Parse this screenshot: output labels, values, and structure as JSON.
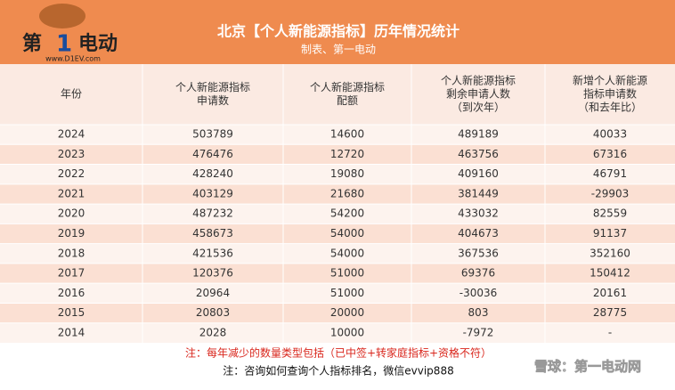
{
  "header": {
    "title": "北京【个人新能源指标】历年情况统计",
    "subtitle": "制表、第一电动",
    "logo": {
      "text": "第",
      "number": "1",
      "brand": "电动",
      "url": "www.D1EV.com"
    }
  },
  "table": {
    "columns": [
      [
        "年份"
      ],
      [
        "个人新能源指标",
        "申请数"
      ],
      [
        "个人新能源指标",
        "配额"
      ],
      [
        "个人新能源指标",
        "剩余申请人数",
        "（到次年）"
      ],
      [
        "新增个人新能源",
        "指标申请数",
        "（和去年比）"
      ]
    ],
    "rows": [
      [
        "2024",
        503789,
        14600,
        489189,
        40033
      ],
      [
        "2023",
        476476,
        12720,
        463756,
        67316
      ],
      [
        "2022",
        428240,
        19080,
        409160,
        46791
      ],
      [
        "2021",
        403129,
        21680,
        381449,
        -29903
      ],
      [
        "2020",
        487232,
        54200,
        433032,
        82559
      ],
      [
        "2019",
        458673,
        54000,
        404673,
        91137
      ],
      [
        "2018",
        421536,
        54000,
        367536,
        352160
      ],
      [
        "2017",
        120376,
        51000,
        69376,
        150412
      ],
      [
        "2016",
        20964,
        51000,
        -30036,
        20161
      ],
      [
        "2015",
        20803,
        20000,
        803,
        28775
      ],
      [
        "2014",
        2028,
        10000,
        -7972,
        "-"
      ]
    ]
  },
  "notes": [
    "注：每年减少的数量类型包括（已中签+转家庭指标+资格不符）",
    "注：咨询如何查询个人指标排名，微信evvip888"
  ],
  "watermark": "雪球：第一电动网"
}
